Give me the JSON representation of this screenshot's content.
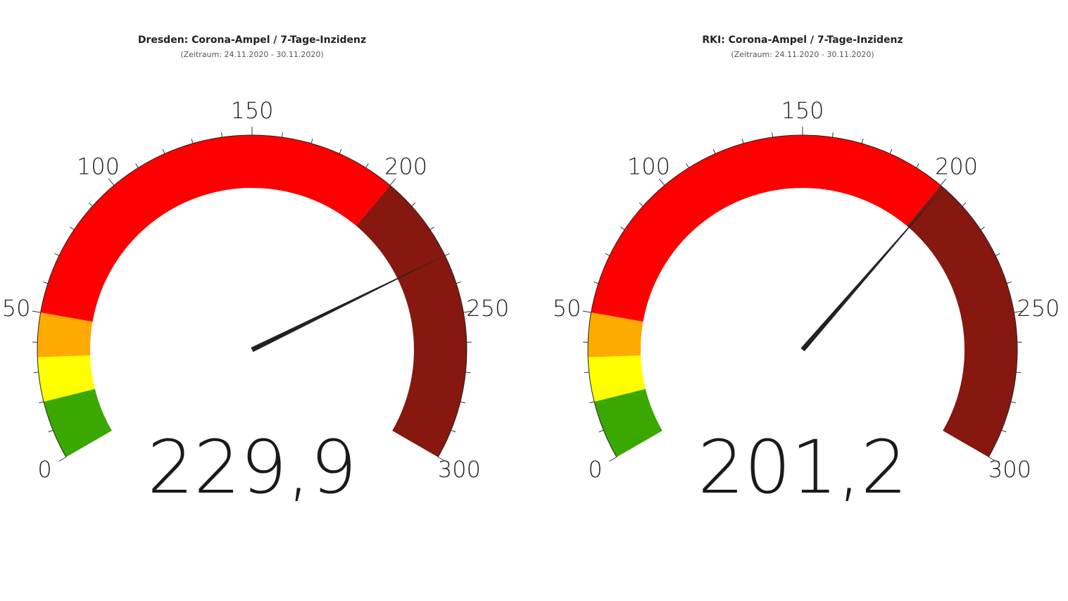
{
  "chart_data": [
    {
      "type": "gauge",
      "title": "Dresden: Corona-Ampel / 7-Tage-Inzidenz",
      "subtitle": "(Zeitraum: 24.11.2020 - 30.11.2020)",
      "value": 229.9,
      "value_label": "229,9",
      "ylim": [
        0,
        300
      ],
      "yticks": [
        0,
        50,
        100,
        150,
        200,
        250,
        300
      ],
      "minor_ticks": [
        10,
        20,
        30,
        40,
        60,
        70,
        80,
        90,
        110,
        120,
        130,
        140,
        160,
        170,
        180,
        190,
        210,
        220,
        230,
        240,
        260,
        270,
        280,
        290
      ],
      "bands": [
        {
          "from": 0,
          "to": 20,
          "color": "#3aa800"
        },
        {
          "from": 20,
          "to": 35,
          "color": "#ffff00"
        },
        {
          "from": 35,
          "to": 50,
          "color": "#ffaa00"
        },
        {
          "from": 50,
          "to": 200,
          "color": "#ff0000"
        },
        {
          "from": 200,
          "to": 300,
          "color": "#861810"
        }
      ]
    },
    {
      "type": "gauge",
      "title": "RKI: Corona-Ampel / 7-Tage-Inzidenz",
      "subtitle": "(Zeitraum: 24.11.2020 - 30.11.2020)",
      "value": 201.2,
      "value_label": "201,2",
      "ylim": [
        0,
        300
      ],
      "yticks": [
        0,
        50,
        100,
        150,
        200,
        250,
        300
      ],
      "minor_ticks": [
        10,
        20,
        30,
        40,
        60,
        70,
        80,
        90,
        110,
        120,
        130,
        140,
        160,
        170,
        180,
        190,
        210,
        220,
        230,
        240,
        260,
        270,
        280,
        290
      ],
      "bands": [
        {
          "from": 0,
          "to": 20,
          "color": "#3aa800"
        },
        {
          "from": 20,
          "to": 35,
          "color": "#ffff00"
        },
        {
          "from": 35,
          "to": 50,
          "color": "#ffaa00"
        },
        {
          "from": 50,
          "to": 200,
          "color": "#ff0000"
        },
        {
          "from": 200,
          "to": 300,
          "color": "#861810"
        }
      ]
    }
  ]
}
